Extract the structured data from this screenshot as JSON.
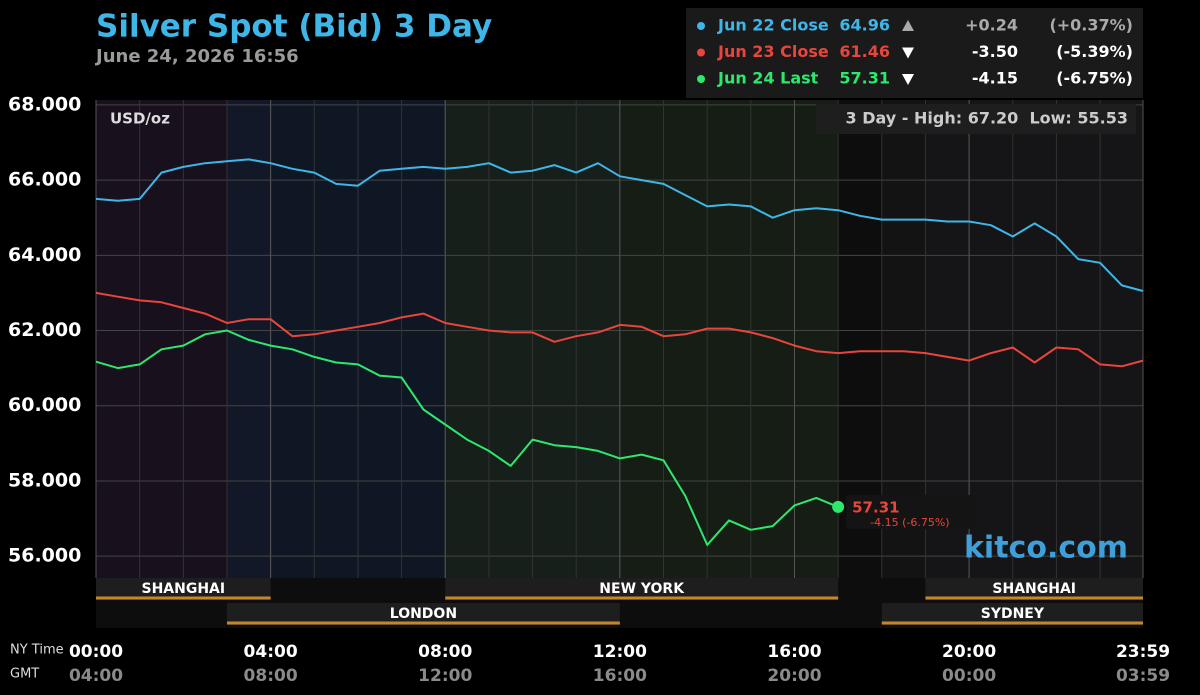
{
  "chart_data": {
    "type": "line",
    "title": "Silver Spot (Bid) 3 Day",
    "subtitle": "June 24, 2026 16:56",
    "unit_label": "USD/oz",
    "range_label": "3 Day - High: 67.20  Low: 55.53",
    "watermark": "kitco.com",
    "x_row_labels": [
      "NY Time",
      "GMT"
    ],
    "x": [
      0,
      30,
      60,
      90,
      120,
      150,
      180,
      210,
      240,
      270,
      300,
      330,
      360,
      390,
      420,
      450,
      480,
      510,
      540,
      570,
      600,
      630,
      660,
      690,
      720,
      750,
      780,
      810,
      840,
      870,
      900,
      930,
      960,
      990,
      1020,
      1050,
      1080,
      1110,
      1140,
      1170,
      1200,
      1230,
      1260,
      1290,
      1320,
      1350,
      1380,
      1410,
      1439
    ],
    "xlim": [
      0,
      1439
    ],
    "xticks": [
      {
        "value": 0,
        "label": "00:00"
      },
      {
        "value": 240,
        "label": "04:00"
      },
      {
        "value": 480,
        "label": "08:00"
      },
      {
        "value": 720,
        "label": "12:00"
      },
      {
        "value": 960,
        "label": "16:00"
      },
      {
        "value": 1200,
        "label": "20:00"
      },
      {
        "value": 1439,
        "label": "23:59"
      }
    ],
    "gmt_labels": [
      "04:00",
      "08:00",
      "12:00",
      "16:00",
      "20:00",
      "00:00",
      "03:59"
    ],
    "ylim": [
      54.09,
      68.13
    ],
    "yticks": [
      {
        "value": 56,
        "label": "56.000"
      },
      {
        "value": 58,
        "label": "58.000"
      },
      {
        "value": 60,
        "label": "60.000"
      },
      {
        "value": 62,
        "label": "62.000"
      },
      {
        "value": 64,
        "label": "64.000"
      },
      {
        "value": 66,
        "label": "66.000"
      },
      {
        "value": 68,
        "label": "68.000"
      }
    ],
    "grid": true,
    "series": [
      {
        "name": "Jun 22 Close",
        "color": "#3fb6e8",
        "close": 64.96,
        "change": {
          "value": 0.24,
          "label": "+0.24"
        },
        "change_pct": {
          "value": 0.37,
          "label": "(+0.37%)"
        },
        "values": [
          65.5,
          65.45,
          65.5,
          66.2,
          66.35,
          66.45,
          66.5,
          66.55,
          66.45,
          66.3,
          66.2,
          65.9,
          65.85,
          66.25,
          66.3,
          66.35,
          66.3,
          66.35,
          66.45,
          66.2,
          66.25,
          66.4,
          66.2,
          66.45,
          66.1,
          66.0,
          65.9,
          65.6,
          65.3,
          65.35,
          65.3,
          65.0,
          65.2,
          65.25,
          65.2,
          65.05,
          64.95,
          64.95,
          64.95,
          64.9,
          64.9,
          64.8,
          64.5,
          64.85,
          64.5,
          63.9,
          63.8,
          63.2,
          63.05
        ]
      },
      {
        "name": "Jun 23 Close",
        "color": "#e8453c",
        "close": 61.46,
        "change": {
          "value": -3.5,
          "label": "-3.50"
        },
        "change_pct": {
          "value": -5.39,
          "label": "(-5.39%)"
        },
        "values": [
          63.0,
          62.9,
          62.8,
          62.75,
          62.6,
          62.45,
          62.2,
          62.3,
          62.3,
          61.85,
          61.9,
          62.0,
          62.1,
          62.2,
          62.35,
          62.45,
          62.2,
          62.1,
          62.0,
          61.95,
          61.95,
          61.7,
          61.85,
          61.95,
          62.15,
          62.1,
          61.85,
          61.9,
          62.05,
          62.05,
          61.95,
          61.8,
          61.6,
          61.45,
          61.4,
          61.45,
          61.45,
          61.45,
          61.4,
          61.3,
          61.2,
          61.4,
          61.55,
          61.15,
          61.55,
          61.5,
          61.1,
          61.05,
          61.2
        ]
      },
      {
        "name": "Jun 24 Last",
        "color": "#2ee86e",
        "close": 57.31,
        "change": {
          "value": -4.15,
          "label": "-4.15"
        },
        "change_pct": {
          "value": -6.75,
          "label": "(-6.75%)"
        },
        "values": [
          61.17,
          61.0,
          61.1,
          61.5,
          61.6,
          61.9,
          62.0,
          61.75,
          61.6,
          61.5,
          61.3,
          61.15,
          61.1,
          60.8,
          60.75,
          59.9,
          59.5,
          59.1,
          58.8,
          58.4,
          59.1,
          58.95,
          58.9,
          58.8,
          58.6,
          58.7,
          58.55,
          57.6,
          56.3,
          56.95,
          56.7,
          56.8,
          57.35,
          57.55,
          57.31,
          null,
          null,
          null,
          null,
          null,
          null,
          null,
          null,
          null,
          null,
          null,
          null,
          null,
          null
        ]
      }
    ],
    "last_annotation": {
      "text": "57.31",
      "subtext": "-4.15 (-6.75%)",
      "color": "#e8453c"
    },
    "sessions": [
      {
        "label": "SHANGHAI",
        "start": 0,
        "end": 240,
        "row": 1,
        "tint": "#1c1220"
      },
      {
        "label": "LONDON",
        "start": 180,
        "end": 720,
        "row": 2,
        "tint": "#121a2a"
      },
      {
        "label": "NEW YORK",
        "start": 480,
        "end": 1020,
        "row": 1,
        "tint": "#182216"
      },
      {
        "label": "SHANGHAI",
        "start": 1140,
        "end": 1439,
        "row": 1,
        "tint": "#1c1220"
      },
      {
        "label": "SYDNEY",
        "start": 1080,
        "end": 1439,
        "row": 2,
        "tint": "#151515"
      }
    ]
  }
}
